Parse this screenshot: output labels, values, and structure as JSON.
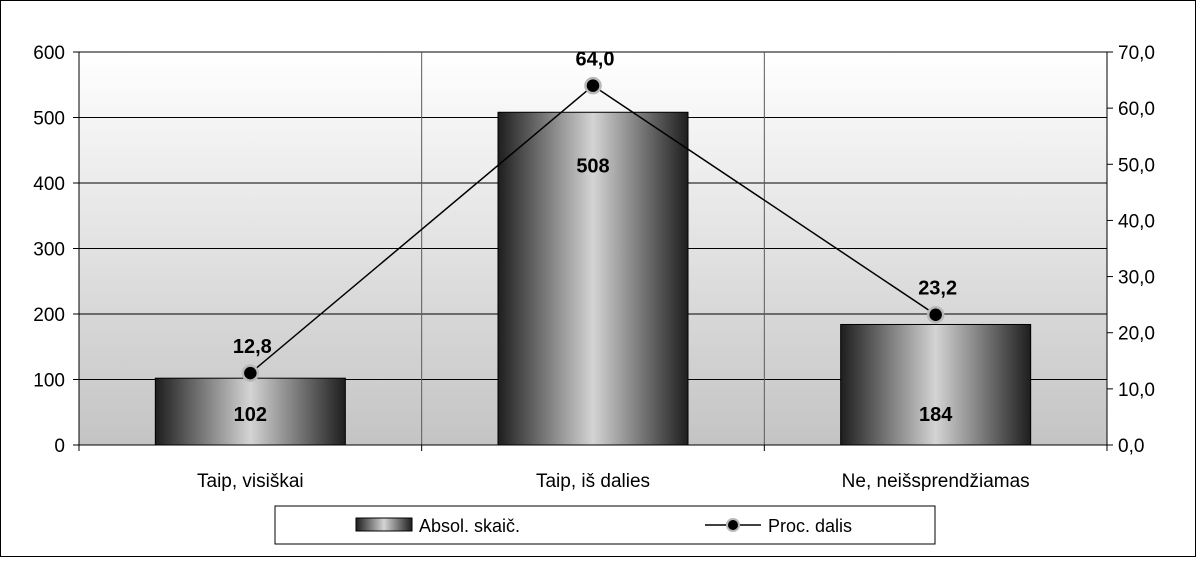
{
  "chart_data": {
    "type": "bar",
    "categories": [
      "Taip, visiškai",
      "Taip, iš dalies",
      "Ne, neišsprendžiamas"
    ],
    "series": [
      {
        "name": "Absol. skaič.",
        "type": "bar",
        "axis": "left",
        "values": [
          102,
          508,
          184
        ],
        "value_labels": [
          "102",
          "508",
          "184"
        ]
      },
      {
        "name": "Proc. dalis",
        "type": "line",
        "axis": "right",
        "values": [
          12.8,
          64.0,
          23.2
        ],
        "value_labels": [
          "12,8",
          "64,0",
          "23,2"
        ]
      }
    ],
    "y_left": {
      "ylim": [
        0,
        600
      ],
      "ticks": [
        0,
        100,
        200,
        300,
        400,
        500,
        600
      ],
      "tick_labels": [
        "0",
        "100",
        "200",
        "300",
        "400",
        "500",
        "600"
      ]
    },
    "y_right": {
      "ylim": [
        0,
        70
      ],
      "ticks": [
        0,
        10,
        20,
        30,
        40,
        50,
        60,
        70
      ],
      "tick_labels": [
        "0,0",
        "10,0",
        "20,0",
        "30,0",
        "40,0",
        "50,0",
        "60,0",
        "70,0"
      ]
    },
    "title": "",
    "xlabel": "",
    "grid": true,
    "legend_position": "bottom",
    "colors": {
      "bar_dark": "#1e1e1e",
      "bar_light": "#d4d4d4",
      "line": "#000000",
      "marker_fill": "#000000",
      "marker_ring": "#b8b8b8",
      "plot_bg_top": "#ffffff",
      "plot_bg_bottom": "#c4c4c4",
      "grid": "#000000"
    }
  }
}
